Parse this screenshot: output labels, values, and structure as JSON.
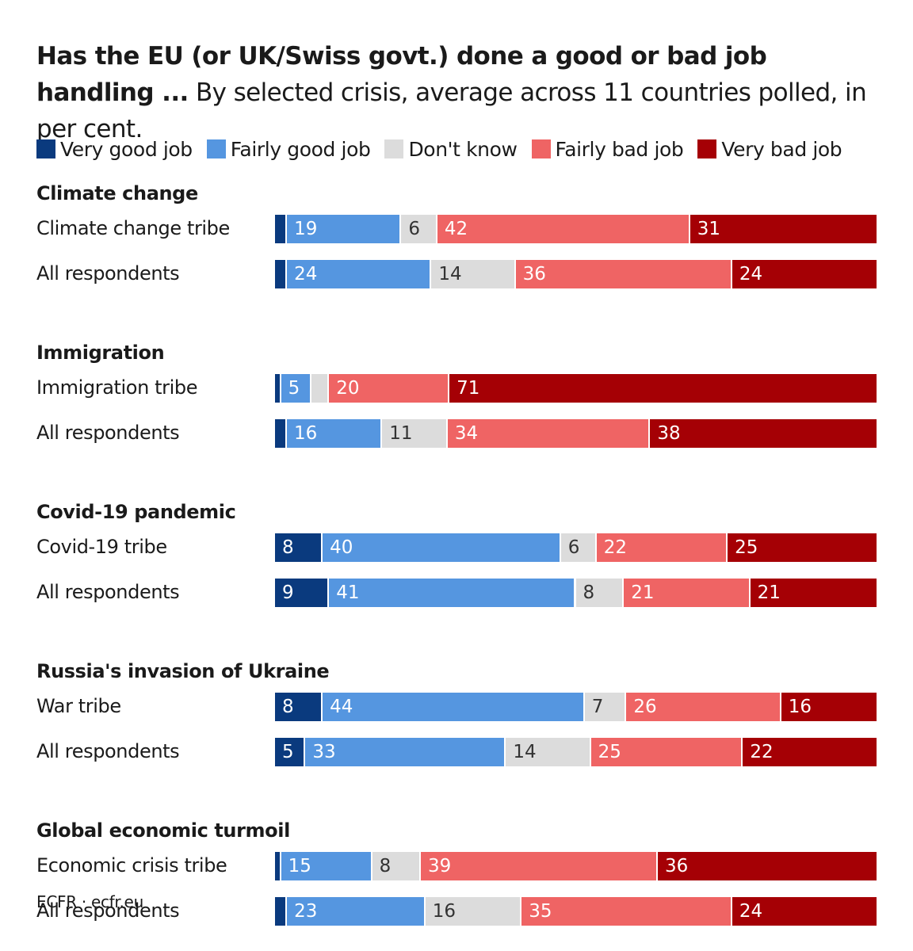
{
  "title": {
    "bold": "Has the EU (or UK/Swiss govt.) done a good or bad job handling ...",
    "regular": " By selected crisis, average across 11 countries polled, in per cent."
  },
  "source": "ECFR · ecfr.eu",
  "colors": {
    "very_good": "#0a3a7e",
    "fairly_good": "#5596e0",
    "dont_know": "#dcdcdc",
    "fairly_bad": "#ef6464",
    "very_bad": "#a50005"
  },
  "chart_data": {
    "type": "bar",
    "orientation": "horizontal",
    "stacked": true,
    "unit": "per cent",
    "legend_position": "top",
    "series": [
      {
        "name": "Very good job",
        "key": "very_good"
      },
      {
        "name": "Fairly good job",
        "key": "fairly_good"
      },
      {
        "name": "Don't know",
        "key": "dont_know"
      },
      {
        "name": "Fairly bad job",
        "key": "fairly_bad"
      },
      {
        "name": "Very bad job",
        "key": "very_bad"
      }
    ],
    "groups": [
      {
        "heading": "Climate change",
        "rows": [
          {
            "label": "Climate change tribe",
            "values": [
              2,
              19,
              6,
              42,
              31
            ],
            "labels": [
              "",
              "19",
              "6",
              "42",
              "31"
            ]
          },
          {
            "label": "All respondents",
            "values": [
              2,
              24,
              14,
              36,
              24
            ],
            "labels": [
              "",
              "24",
              "14",
              "36",
              "24"
            ]
          }
        ]
      },
      {
        "heading": "Immigration",
        "rows": [
          {
            "label": "Immigration tribe",
            "values": [
              1,
              5,
              3,
              20,
              71
            ],
            "labels": [
              "",
              "5",
              "",
              "20",
              "71"
            ]
          },
          {
            "label": "All respondents",
            "values": [
              2,
              16,
              11,
              34,
              38
            ],
            "labels": [
              "",
              "16",
              "11",
              "34",
              "38"
            ]
          }
        ]
      },
      {
        "heading": "Covid-19 pandemic",
        "rows": [
          {
            "label": "Covid-19 tribe",
            "values": [
              8,
              40,
              6,
              22,
              25
            ],
            "labels": [
              "8",
              "40",
              "6",
              "22",
              "25"
            ]
          },
          {
            "label": "All respondents",
            "values": [
              9,
              41,
              8,
              21,
              21
            ],
            "labels": [
              "9",
              "41",
              "8",
              "21",
              "21"
            ]
          }
        ]
      },
      {
        "heading": "Russia's invasion of Ukraine",
        "rows": [
          {
            "label": "War tribe",
            "values": [
              8,
              44,
              7,
              26,
              16
            ],
            "labels": [
              "8",
              "44",
              "7",
              "26",
              "16"
            ]
          },
          {
            "label": "All respondents",
            "values": [
              5,
              33,
              14,
              25,
              22
            ],
            "labels": [
              "5",
              "33",
              "14",
              "25",
              "22"
            ]
          }
        ]
      },
      {
        "heading": "Global economic turmoil",
        "rows": [
          {
            "label": "Economic crisis tribe",
            "values": [
              1,
              15,
              8,
              39,
              36
            ],
            "labels": [
              "",
              "15",
              "8",
              "39",
              "36"
            ]
          },
          {
            "label": "All respondents",
            "values": [
              2,
              23,
              16,
              35,
              24
            ],
            "labels": [
              "",
              "23",
              "16",
              "35",
              "24"
            ]
          }
        ]
      }
    ]
  }
}
